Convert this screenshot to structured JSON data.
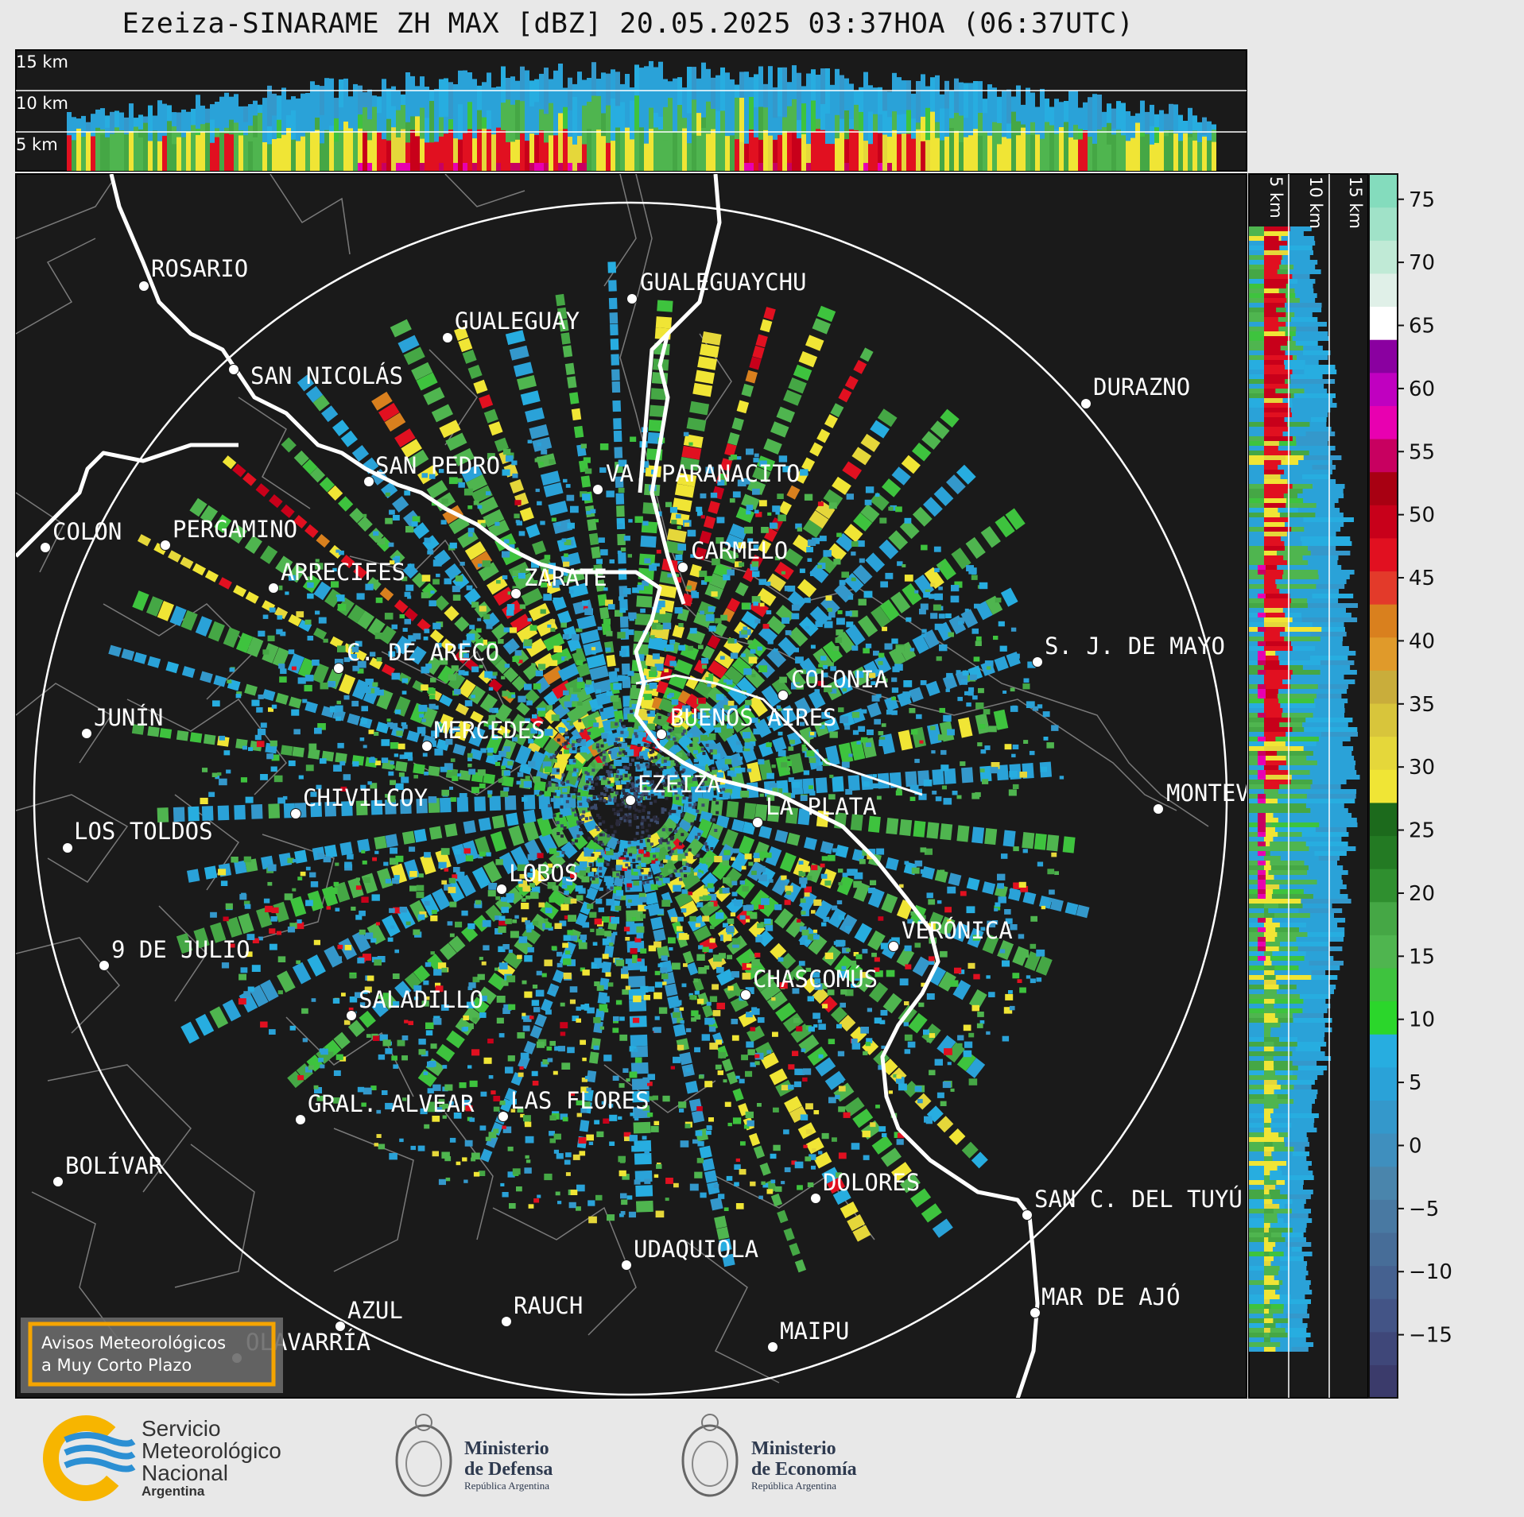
{
  "title": "Ezeiza-SINARAME ZH MAX [dBZ] 20.05.2025 03:37HOA (06:37UTC)",
  "top_panel": {
    "height_labels": [
      "15 km",
      "10 km",
      "5 km"
    ]
  },
  "side_panel": {
    "height_labels": [
      "5 km",
      "10 km",
      "15 km"
    ]
  },
  "colorbar": {
    "ticks": [
      "75",
      "70",
      "65",
      "60",
      "55",
      "50",
      "45",
      "40",
      "35",
      "30",
      "25",
      "20",
      "15",
      "10",
      "5",
      "0",
      "−5",
      "−10",
      "−15"
    ],
    "range": [
      -20,
      77
    ],
    "colors": [
      "#3b3b6b",
      "#3f4779",
      "#435486",
      "#456190",
      "#476d98",
      "#4979a2",
      "#4a85ac",
      "#3f8fbe",
      "#3498cb",
      "#2aa2d8",
      "#27ade0",
      "#2bd62b",
      "#3ec33e",
      "#4fb54f",
      "#45a745",
      "#2f8f2f",
      "#237a23",
      "#1c6a1c",
      "#f0e535",
      "#e5d73a",
      "#d8c53b",
      "#c9ad3b",
      "#e09a2a",
      "#d9801e",
      "#e33a2a",
      "#e11020",
      "#c8001a",
      "#a80012",
      "#c80060",
      "#e800b0",
      "#c000c0",
      "#8a00a0",
      "#ffffff",
      "#e0f0e8",
      "#c0ead6",
      "#a0e2c8",
      "#84dcbd"
    ]
  },
  "cities": [
    {
      "name": "ROSARIO"
    },
    {
      "name": "GUALEGUAYCHU"
    },
    {
      "name": "GUALEGUAY"
    },
    {
      "name": "SAN NICOLÁS"
    },
    {
      "name": "DURAZNO"
    },
    {
      "name": "SAN PEDRO"
    },
    {
      "name": "VA. PARANACITO"
    },
    {
      "name": "COLON"
    },
    {
      "name": "PERGAMINO"
    },
    {
      "name": "CARMELO"
    },
    {
      "name": "ARRECIFES"
    },
    {
      "name": "ZÁRATE"
    },
    {
      "name": "S. J. DE MAYO"
    },
    {
      "name": "C. DE ARECO"
    },
    {
      "name": "COLONIA"
    },
    {
      "name": "JUNÍN"
    },
    {
      "name": "BUENOS AIRES"
    },
    {
      "name": "MERCEDES"
    },
    {
      "name": "EZEIZA"
    },
    {
      "name": "MONTEVIDEO"
    },
    {
      "name": "CHIVILCOY"
    },
    {
      "name": "LA PLATA"
    },
    {
      "name": "LOS TOLDOS"
    },
    {
      "name": "LOBOS"
    },
    {
      "name": "VERÓNICA"
    },
    {
      "name": "9 DE JULIO"
    },
    {
      "name": "CHASCOMÚS"
    },
    {
      "name": "SALADILLO"
    },
    {
      "name": "GRAL. ALVEAR"
    },
    {
      "name": "LAS FLORES"
    },
    {
      "name": "BOLÍVAR"
    },
    {
      "name": "DOLORES"
    },
    {
      "name": "SAN C. DEL TUYÚ"
    },
    {
      "name": "UDAQUIOLA"
    },
    {
      "name": "MAR DE AJÓ"
    },
    {
      "name": "AZUL"
    },
    {
      "name": "RAUCH"
    },
    {
      "name": "OLAVARRÍA"
    },
    {
      "name": "MAIPU"
    }
  ],
  "warning_box": {
    "line1": "Avisos Meteorológicos",
    "line2": "a Muy Corto Plazo"
  },
  "logos": {
    "smn": {
      "line1": "Servicio",
      "line2": "Meteorológico",
      "line3": "Nacional",
      "line4": "Argentina"
    },
    "defensa": {
      "line1": "Ministerio",
      "line2": "de Defensa",
      "line3": "República Argentina"
    },
    "economia": {
      "line1": "Ministerio",
      "line2": "de Economía",
      "line3": "República Argentina"
    }
  },
  "palette": {
    "background": "#1a1a1a",
    "page": "#e8e8e8",
    "border_yellow": "#f5a400",
    "smn_blue": "#2b8fd3",
    "smn_yellow": "#f7b500"
  }
}
